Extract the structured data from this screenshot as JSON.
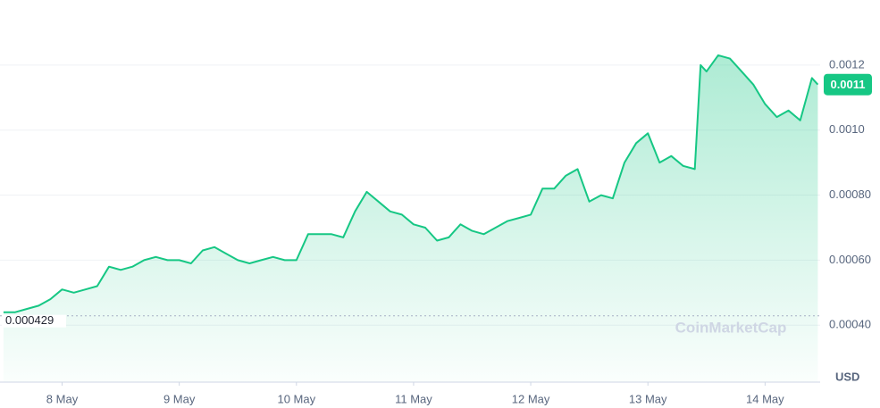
{
  "chart_data": {
    "type": "line",
    "x": [
      7.5,
      7.6,
      7.7,
      7.8,
      7.9,
      8.0,
      8.1,
      8.2,
      8.3,
      8.4,
      8.5,
      8.6,
      8.7,
      8.8,
      8.9,
      9.0,
      9.1,
      9.2,
      9.3,
      9.4,
      9.5,
      9.6,
      9.7,
      9.8,
      9.9,
      10.0,
      10.1,
      10.2,
      10.3,
      10.4,
      10.5,
      10.6,
      10.7,
      10.8,
      10.9,
      11.0,
      11.1,
      11.2,
      11.3,
      11.4,
      11.5,
      11.6,
      11.7,
      11.8,
      11.9,
      12.0,
      12.1,
      12.2,
      12.3,
      12.4,
      12.5,
      12.6,
      12.7,
      12.8,
      12.9,
      13.0,
      13.1,
      13.2,
      13.3,
      13.4,
      13.45,
      13.5,
      13.6,
      13.7,
      13.8,
      13.9,
      14.0,
      14.1,
      14.2,
      14.3,
      14.4,
      14.45
    ],
    "series": [
      {
        "name": "USD",
        "color": "#16c784",
        "values": [
          0.00044,
          0.00044,
          0.00045,
          0.00046,
          0.00048,
          0.00051,
          0.0005,
          0.00051,
          0.00052,
          0.00058,
          0.00057,
          0.00058,
          0.0006,
          0.00061,
          0.0006,
          0.0006,
          0.00059,
          0.00063,
          0.00064,
          0.00062,
          0.0006,
          0.00059,
          0.0006,
          0.00061,
          0.0006,
          0.0006,
          0.00068,
          0.00068,
          0.00068,
          0.00067,
          0.00075,
          0.00081,
          0.00078,
          0.00075,
          0.00074,
          0.00071,
          0.0007,
          0.00066,
          0.00067,
          0.00071,
          0.00069,
          0.00068,
          0.0007,
          0.00072,
          0.00073,
          0.00074,
          0.00082,
          0.00082,
          0.00086,
          0.00088,
          0.00078,
          0.0008,
          0.00079,
          0.0009,
          0.00096,
          0.00099,
          0.0009,
          0.00092,
          0.00089,
          0.00088,
          0.0012,
          0.00118,
          0.00123,
          0.00122,
          0.00118,
          0.00114,
          0.00108,
          0.00104,
          0.00106,
          0.00103,
          0.00116,
          0.00114
        ]
      }
    ],
    "xlim": [
      7.47,
      14.47
    ],
    "xticks": [
      {
        "value": 8,
        "label": "8 May"
      },
      {
        "value": 9,
        "label": "9 May"
      },
      {
        "value": 10,
        "label": "10 May"
      },
      {
        "value": 11,
        "label": "11 May"
      },
      {
        "value": 12,
        "label": "12 May"
      },
      {
        "value": 13,
        "label": "13 May"
      },
      {
        "value": 14,
        "label": "14 May"
      }
    ],
    "ylim": [
      0.000225,
      0.0014
    ],
    "yticks": [
      0.0012,
      {
        "value": 0.001,
        "label": "0.0010"
      },
      {
        "value": 0.0008,
        "label": "0.00080"
      },
      {
        "value": 0.0006,
        "label": "0.00060"
      },
      {
        "value": 0.0004,
        "label": "0.00040"
      }
    ],
    "grid": true,
    "reference_value": 0.000429,
    "current_price": 0.0011,
    "unit_label": "USD",
    "watermark": "CoinMarketCap"
  }
}
